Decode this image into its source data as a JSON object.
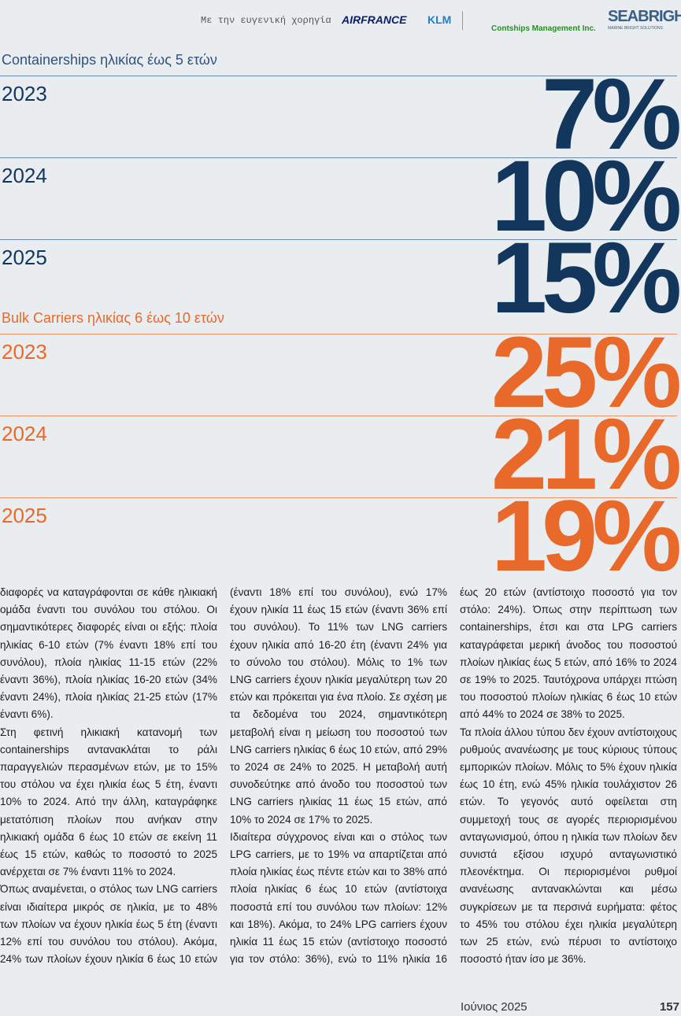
{
  "header": {
    "sponsor_note": "Με την ευγενική χορηγία",
    "logos": [
      "AIRFRANCE",
      "KLM",
      "Contships Management Inc.",
      "SEABRIGHT",
      "MARINE BRIGHT SOLUTIONS"
    ]
  },
  "sections": [
    {
      "title": "Containerships ηλικίας έως 5 ετών",
      "color": "#13365c",
      "title_color": "#2e5382",
      "line_color": "#6d89a8",
      "rows": [
        {
          "year": "2023",
          "value": "7%"
        },
        {
          "year": "2024",
          "value": "10%"
        },
        {
          "year": "2025",
          "value": "15%"
        }
      ]
    },
    {
      "title": "Bulk Carriers ηλικίας 6 έως 10 ετών",
      "color": "#e8692a",
      "title_color": "#e8692a",
      "line_color": "#ec9466",
      "rows": [
        {
          "year": "2023",
          "value": "25%"
        },
        {
          "year": "2024",
          "value": "21%"
        },
        {
          "year": "2025",
          "value": "19%"
        }
      ]
    }
  ],
  "article": {
    "paragraphs": [
      "διαφορές να καταγράφονται σε κάθε ηλικιακή ομάδα έναντι του συνόλου του στόλου. Οι σημαντικότερες διαφορές είναι οι εξής: πλοία ηλικίας 6-10 ετών (7% έναντι 18% επί του συνόλου), πλοία ηλικίας 11-15 ετών (22% έναντι 36%), πλοία ηλικίας 16-20 ετών (34% έναντι 24%), πλοία ηλικίας 21-25 ετών (17% έναντι 6%).",
      "Στη φετινή ηλικιακή κατανομή των containerships αντανακλάται το ράλι παραγγελιών περασμένων ετών, με το 15% του στόλου να έχει ηλικία έως 5 έτη, έναντι 10% το 2024. Από την άλλη, καταγράφηκε μετατόπιση πλοίων που ανήκαν στην ηλικιακή ομάδα 6 έως 10 ετών σε εκείνη 11 έως 15 ετών, καθώς το ποσοστό το 2025 ανέρχεται σε 7% έναντι 11% το 2024.",
      "Όπως αναμένεται, ο στόλος των LNG carriers είναι ιδιαίτερα μικρός σε ηλικία, με το 48% των πλοίων να έχουν ηλικία έως 5 έτη (έναντι 12% επί του συνόλου του στόλου). Ακόμα, 24% των πλοίων έχουν ηλικία 6 έως 10 ετών (έναντι 18% επί του συνόλου), ενώ 17% έχουν ηλικία 11 έως 15 ετών (έναντι 36% επί του συνόλου). Το 11% των LNG carriers έχουν ηλικία από 16-20 έτη (έναντι 24% για το σύνολο του στόλου). Μόλις το 1% των LNG carriers έχουν ηλικία μεγαλύτερη των 20 ετών και πρόκειται για ένα πλοίο. Σε σχέση με τα δεδομένα του 2024, σημαντικότερη μεταβολή είναι η μείωση του ποσοστού των LNG carriers ηλικίας 6 έως 10 ετών, από 29% το 2024 σε 24% το 2025. Η μεταβολή αυτή συνοδεύτηκε από άνοδο του ποσοστού των LNG carriers ηλικίας 11 έως 15 ετών, από 10% το 2024 σε 17% το 2025.",
      "Ιδιαίτερα σύγχρονος είναι και ο στόλος των LPG carriers, με το 19% να απαρτίζεται από πλοία ηλικίας έως πέντε ετών και το 38% από πλοία ηλικίας 6 έως 10 ετών (αντίστοιχα ποσοστά επί του συνόλου των πλοίων: 12% και 18%). Ακόμα, το 24% LPG carriers έχουν ηλικία 11 έως 15 ετών (αντίστοιχο ποσοστό για τον στόλο: 36%), ενώ το 11% ηλικία 16 έως 20 ετών (αντίστοιχο ποσοστό για τον στόλο: 24%). Όπως στην περίπτωση των containerships, έτσι και στα LPG carriers καταγράφεται μερική άνοδος του ποσοστού πλοίων ηλικίας έως 5 ετών, από 16% το 2024 σε 19% το 2025. Ταυτόχρονα υπάρχει πτώση του ποσοστού πλοίων ηλικίας 6 έως 10 ετών από 44% το 2024 σε 38% το 2025.",
      "Τα πλοία άλλου τύπου δεν έχουν αντίστοιχους ρυθμούς ανανέωσης με τους κύριους τύπους εμπορικών πλοίων. Μόλις το 5% έχουν ηλικία έως 10 έτη, ενώ 45% ηλικία τουλάχιστον 26 ετών. Το γεγονός αυτό οφείλεται στη συμμετοχή τους σε αγορές περιορισμένου ανταγωνισμού, όπου η ηλικία των πλοίων δεν συνιστά εξίσου ισχυρό ανταγωνιστικό πλεονέκτημα. Οι περιορισμένοι ρυθμοί ανανέωσης αντανακλώνται και μέσω συγκρίσεων με τα περσινά ευρήματα: φέτος το 45% του στόλου έχει ηλικία μεγαλύτερη των 25 ετών, ενώ πέρυσι το αντίστοιχο ποσοστό ήταν ίσο με 36%."
    ]
  },
  "footer": {
    "date": "Ιούνιος 2025",
    "page": "157"
  }
}
